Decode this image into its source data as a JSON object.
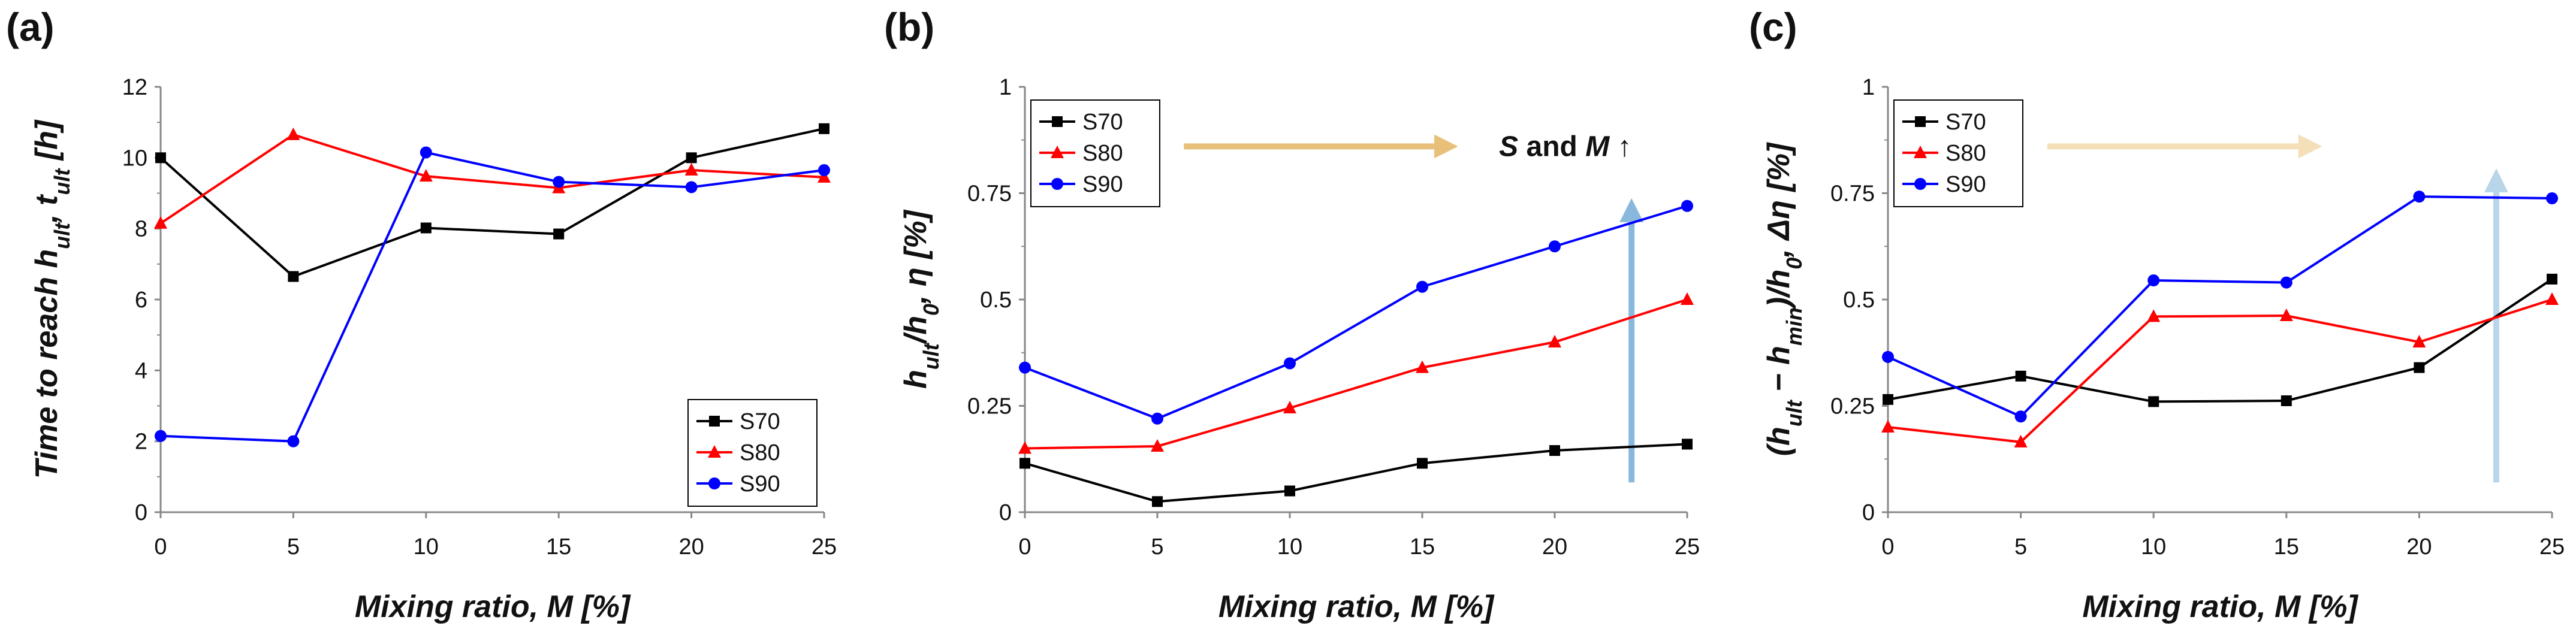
{
  "chart_data": [
    {
      "panel_label": "(a)",
      "type": "line",
      "x": [
        0,
        5,
        10,
        15,
        20,
        25
      ],
      "x_ticks": [
        "0",
        "5",
        "10",
        "15",
        "20",
        "25"
      ],
      "xlabel": "Mixing ratio, M [%]",
      "xlim": [
        0,
        25
      ],
      "ylabel": "Time to reach h_ult, t_ult [h]",
      "ylim": [
        0,
        12
      ],
      "y_ticks": [
        "0",
        "2",
        "4",
        "6",
        "8",
        "10",
        "12"
      ],
      "grid": false,
      "legend_position": "bottom-right",
      "series": [
        {
          "name": "S70",
          "color": "#000000",
          "marker": "square",
          "values": [
            10.0,
            6.65,
            8.02,
            7.85,
            10.0,
            10.82
          ]
        },
        {
          "name": "S80",
          "color": "#ff0000",
          "marker": "triangle",
          "values": [
            8.15,
            10.65,
            9.48,
            9.15,
            9.65,
            9.45
          ]
        },
        {
          "name": "S90",
          "color": "#0000ff",
          "marker": "circle",
          "values": [
            2.15,
            2.0,
            10.15,
            9.32,
            9.17,
            9.65
          ]
        }
      ]
    },
    {
      "panel_label": "(b)",
      "type": "line",
      "x": [
        0,
        5,
        10,
        15,
        20,
        25
      ],
      "x_ticks": [
        "0",
        "5",
        "10",
        "15",
        "20",
        "25"
      ],
      "xlabel": "Mixing ratio, M [%]",
      "xlim": [
        0,
        25
      ],
      "ylabel": "h_ult/h_0, η [%]",
      "ylim": [
        0,
        1
      ],
      "y_ticks": [
        "0",
        "0.25",
        "0.5",
        "0.75",
        "1"
      ],
      "grid": false,
      "legend_position": "top-left",
      "series": [
        {
          "name": "S70",
          "color": "#000000",
          "marker": "square",
          "values": [
            0.115,
            0.025,
            0.05,
            0.115,
            0.145,
            0.16
          ]
        },
        {
          "name": "S80",
          "color": "#ff0000",
          "marker": "triangle",
          "values": [
            0.15,
            0.155,
            0.245,
            0.34,
            0.4,
            0.5
          ]
        },
        {
          "name": "S90",
          "color": "#0000ff",
          "marker": "circle",
          "values": [
            0.34,
            0.22,
            0.35,
            0.53,
            0.625,
            0.72
          ]
        }
      ],
      "annotations": {
        "text_main": "S",
        "text_and": " and ",
        "text_m": "M",
        "text_arrow": " ↑",
        "horizontal_arrow_color": "#e8c07a",
        "vertical_arrow_color": "#8ab8dc"
      }
    },
    {
      "panel_label": "(c)",
      "type": "line",
      "x": [
        0,
        5,
        10,
        15,
        20,
        25
      ],
      "x_ticks": [
        "0",
        "5",
        "10",
        "15",
        "20",
        "25"
      ],
      "xlabel": "Mixing ratio, M [%]",
      "xlim": [
        0,
        25
      ],
      "ylabel": "(h_ult − h_min)/h_0, Δη [%]",
      "ylim": [
        0,
        1
      ],
      "y_ticks": [
        "0",
        "0.25",
        "0.5",
        "0.75",
        "1"
      ],
      "grid": false,
      "legend_position": "top-left",
      "series": [
        {
          "name": "S70",
          "color": "#000000",
          "marker": "square",
          "values": [
            0.265,
            0.32,
            0.26,
            0.262,
            0.34,
            0.548
          ]
        },
        {
          "name": "S80",
          "color": "#ff0000",
          "marker": "triangle",
          "values": [
            0.2,
            0.165,
            0.46,
            0.462,
            0.4,
            0.5
          ]
        },
        {
          "name": "S90",
          "color": "#0000ff",
          "marker": "circle",
          "values": [
            0.365,
            0.225,
            0.545,
            0.54,
            0.742,
            0.738
          ]
        }
      ],
      "annotations": {
        "horizontal_arrow_color": "#f5dfb8",
        "vertical_arrow_color": "#b8d5ea"
      }
    }
  ]
}
